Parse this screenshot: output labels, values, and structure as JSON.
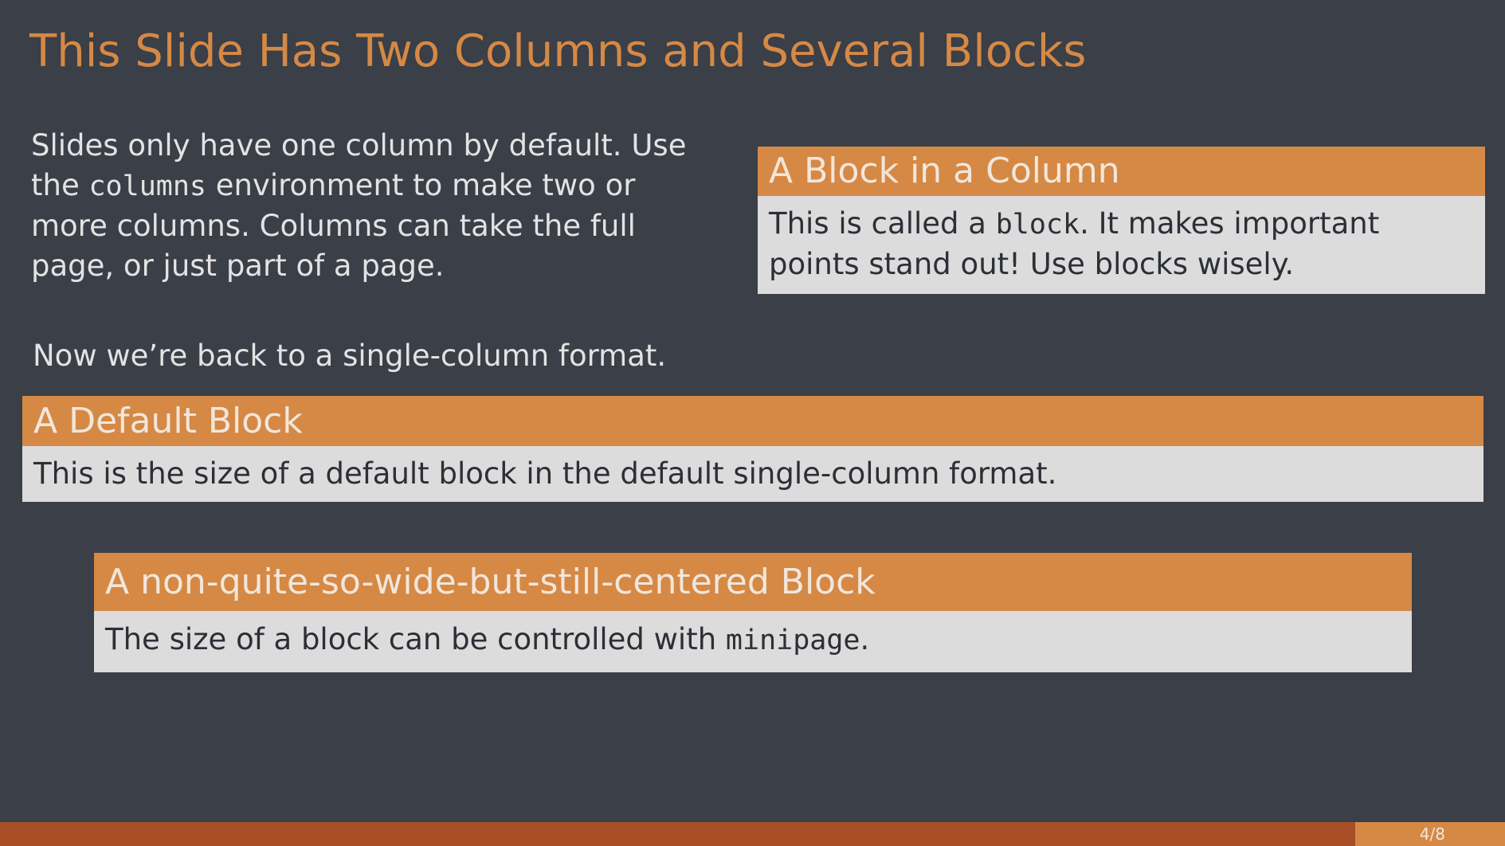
{
  "slide": {
    "title": "This Slide Has Two Columns and Several Blocks",
    "left_column": {
      "text_1": "Slides only have one column by default.  Use the ",
      "code_1": "columns",
      "text_2": " environment to make two or more columns.  Columns can take the full page, or just part of a page."
    },
    "column_block": {
      "title": "A Block in a Column",
      "text_1": "This is called a ",
      "code_1": "block",
      "text_2": ".  It makes important points stand out!  Use blocks wisely."
    },
    "single_column_text": "Now we’re back to a single-column format.",
    "default_block": {
      "title": "A Default Block",
      "body": "This is the size of a default block in the default single-column format."
    },
    "narrow_block": {
      "title": "A non-quite-so-wide-but-still-centered Block",
      "text_1": "The size of a block can be controlled with ",
      "code_1": "minipage",
      "text_2": "."
    },
    "footer": {
      "page_number": "4/8"
    }
  },
  "colors": {
    "background": "#3a3f48",
    "accent": "#d58945",
    "footer_bar": "#a94f27",
    "block_body": "#dcdcdc"
  }
}
